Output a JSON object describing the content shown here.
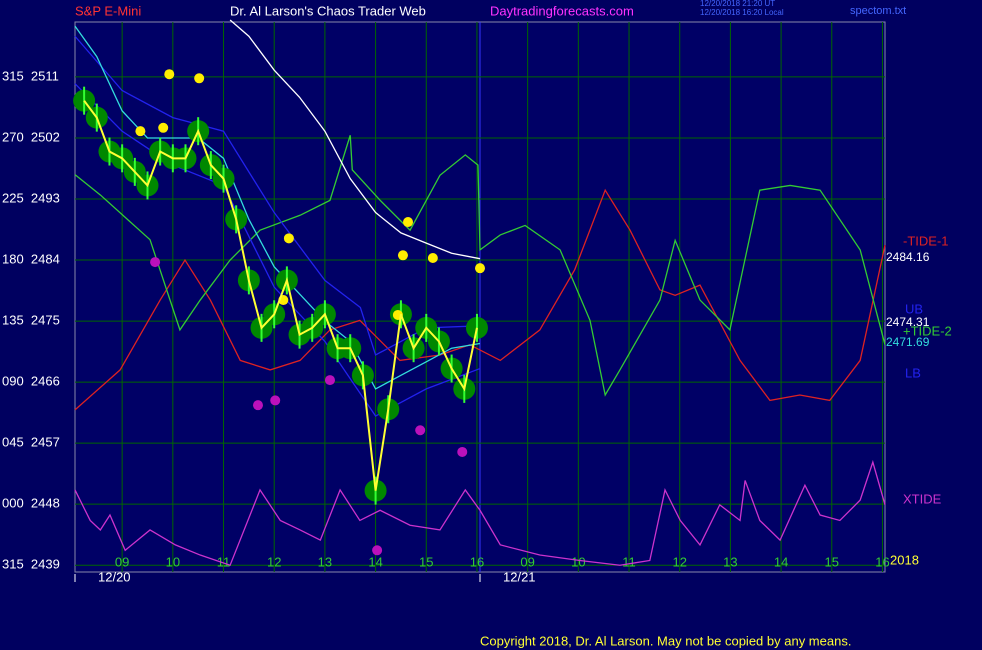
{
  "chart_data": {
    "type": "line",
    "subtitle": "S&P E-Mini",
    "title": "Dr. Al Larson's Chaos Trader Web",
    "website": "Daytradingforecasts.com",
    "timestamps": [
      "12/20/2018 21:20 UT",
      "12/20/2018 16:20 Local"
    ],
    "file": "spectom.txt",
    "copyright": "Copyright 2018, Dr. Al Larson. May not be copied by any means.",
    "year_label": "2018",
    "xlim": [
      -0.93,
      15.05
    ],
    "ylim": [
      2438,
      2519.1
    ],
    "grid": true,
    "xticks": [
      {
        "value": 0,
        "label": "09"
      },
      {
        "value": 1,
        "label": "10"
      },
      {
        "value": 2,
        "label": "11"
      },
      {
        "value": 3,
        "label": "12"
      },
      {
        "value": 4,
        "label": "13"
      },
      {
        "value": 5,
        "label": "14"
      },
      {
        "value": 6,
        "label": "15"
      },
      {
        "value": 7,
        "label": "16"
      },
      {
        "value": 8,
        "label": "09"
      },
      {
        "value": 9,
        "label": "10"
      },
      {
        "value": 10,
        "label": "11"
      },
      {
        "value": 11,
        "label": "12"
      },
      {
        "value": 12,
        "label": "13"
      },
      {
        "value": 13,
        "label": "14"
      },
      {
        "value": 14,
        "label": "15"
      },
      {
        "value": 15,
        "label": "16"
      }
    ],
    "date_ticks": [
      {
        "value": -0.93,
        "label": "12/20"
      },
      {
        "value": 7.06,
        "label": "12/21"
      }
    ],
    "yticks": [
      {
        "value": 2511,
        "label": "315  2511"
      },
      {
        "value": 2502,
        "label": "270  2502"
      },
      {
        "value": 2493,
        "label": "225  2493"
      },
      {
        "value": 2484,
        "label": "180  2484"
      },
      {
        "value": 2475,
        "label": "135  2475"
      },
      {
        "value": 2466,
        "label": "090  2466"
      },
      {
        "value": 2457,
        "label": "045  2457"
      },
      {
        "value": 2448,
        "label": "000  2448"
      },
      {
        "value": 2439,
        "label": "315  2439"
      }
    ],
    "series": [
      {
        "name": "XTIDE",
        "color": "#cc33cc",
        "x": [
          -0.93,
          -0.63,
          -0.43,
          -0.24,
          0.06,
          0.55,
          1.05,
          1.54,
          2.13,
          2.72,
          3.12,
          3.51,
          3.91,
          4.3,
          4.69,
          5.09,
          5.68,
          6.27,
          6.77,
          7.06,
          7.46,
          8.24,
          9.03,
          9.82,
          10.41,
          10.71,
          11.01,
          11.4,
          11.79,
          12.19,
          12.29,
          12.58,
          12.98,
          13.47,
          13.77,
          14.16,
          14.56,
          14.81,
          15.05
        ],
        "values": [
          2450.1,
          2445.6,
          2444.2,
          2446.4,
          2441.2,
          2444.2,
          2442.0,
          2440.5,
          2439.0,
          2450.1,
          2445.6,
          2444.2,
          2442.7,
          2450.1,
          2445.6,
          2447.1,
          2444.9,
          2444.2,
          2450.1,
          2447.1,
          2442.0,
          2440.5,
          2439.7,
          2439.0,
          2439.7,
          2450.1,
          2445.6,
          2442.0,
          2447.9,
          2445.6,
          2451.5,
          2445.6,
          2442.7,
          2450.8,
          2446.4,
          2445.6,
          2448.6,
          2454.2,
          2447.9
        ]
      },
      {
        "name": "-TIDE-1",
        "color": "#dd2222",
        "x": [
          -0.93,
          -0.04,
          0.75,
          1.24,
          1.74,
          2.33,
          2.92,
          3.51,
          4.1,
          4.69,
          5.48,
          6.27,
          6.86,
          7.46,
          8.24,
          8.93,
          9.53,
          10.02,
          10.61,
          10.91,
          11.4,
          12.19,
          12.78,
          13.37,
          13.96,
          14.56,
          15.05
        ],
        "values": [
          2461.9,
          2467.8,
          2478.1,
          2484.0,
          2478.1,
          2469.2,
          2467.8,
          2469.2,
          2473.7,
          2475.1,
          2469.2,
          2470.0,
          2471.5,
          2469.2,
          2473.7,
          2482.6,
          2494.3,
          2488.4,
          2479.6,
          2478.8,
          2480.3,
          2469.2,
          2463.3,
          2464.1,
          2463.3,
          2469.2,
          2486.2
        ]
      },
      {
        "name": "+TIDE-2",
        "color": "#33cc33",
        "x": [
          -0.93,
          -0.43,
          0.55,
          1.14,
          1.54,
          2.13,
          2.72,
          3.51,
          4.1,
          4.5,
          4.54,
          5.09,
          5.68,
          6.27,
          6.77,
          7.02,
          7.06,
          7.46,
          7.95,
          8.64,
          9.23,
          9.53,
          9.82,
          10.61,
          10.91,
          11.4,
          11.99,
          12.58,
          13.18,
          13.77,
          14.56,
          15.05
        ],
        "values": [
          2496.6,
          2493.6,
          2487.0,
          2473.7,
          2478.1,
          2484.0,
          2488.4,
          2490.6,
          2492.8,
          2502.4,
          2497.3,
          2492.8,
          2488.4,
          2496.5,
          2499.5,
          2498.0,
          2485.5,
          2487.7,
          2489.1,
          2485.5,
          2475.1,
          2464.1,
          2467.8,
          2478.1,
          2486.9,
          2478.1,
          2473.7,
          2494.3,
          2495.0,
          2494.3,
          2485.5,
          2471.5
        ]
      },
      {
        "name": "UB",
        "color": "#2222ee",
        "last_value": 2474.31,
        "x": [
          -0.93,
          0,
          1,
          2,
          3,
          4,
          4.7,
          5.0,
          5.5,
          6,
          7.06
        ],
        "values": [
          2517,
          2509,
          2505,
          2503,
          2491,
          2481,
          2477,
          2470,
          2472,
          2474,
          2474.3
        ]
      },
      {
        "name": "LB",
        "color": "#2222ee",
        "x": [
          -0.93,
          0,
          1,
          2,
          3,
          4,
          5,
          5.5,
          6,
          7.06
        ],
        "values": [
          2510,
          2503,
          2498,
          2495,
          2480,
          2472,
          2461,
          2463,
          2465,
          2468
        ]
      },
      {
        "color": "#ffffff",
        "last_value": 2484.16,
        "x": [
          2.13,
          2.5,
          3,
          3.5,
          4,
          4.5,
          5,
          5.5,
          6,
          6.5,
          7.06
        ],
        "values": [
          2519.4,
          2517,
          2512,
          2508,
          2503,
          2496,
          2491,
          2488,
          2486.5,
          2485,
          2484.2
        ]
      },
      {
        "color": "#33dddd",
        "last_value": 2471.69,
        "x": [
          -0.93,
          -0.5,
          0,
          0.5,
          1,
          1.5,
          2,
          2.5,
          3,
          3.5,
          4,
          4.5,
          5,
          5.5,
          6,
          6.5,
          7.06
        ],
        "values": [
          2518.5,
          2514,
          2506,
          2502,
          2502,
          2502,
          2499,
          2490,
          2483,
          2479,
          2475,
          2472,
          2465,
          2467,
          2469,
          2471,
          2471.7
        ]
      },
      {
        "color": "#ffff33",
        "marker_color": "#008800",
        "x": [
          -0.75,
          -0.5,
          -0.25,
          0,
          0.25,
          0.5,
          0.75,
          1.0,
          1.25,
          1.5,
          1.75,
          2.0,
          2.25,
          2.5,
          2.75,
          3.0,
          3.25,
          3.5,
          3.75,
          4.0,
          4.25,
          4.5,
          4.75,
          5.0,
          5.25,
          5.5,
          5.75,
          6.0,
          6.25,
          6.5,
          6.75,
          7.0
        ],
        "values": [
          2507.5,
          2505,
          2500,
          2499,
          2497,
          2495,
          2500,
          2499,
          2499,
          2503,
          2498,
          2496,
          2490,
          2481,
          2474,
          2476,
          2481,
          2473,
          2474,
          2476,
          2471,
          2471,
          2467,
          2450,
          2462,
          2476,
          2471,
          2474,
          2472,
          2468,
          2465,
          2474
        ]
      }
    ],
    "highs": {
      "color": "#ffee00",
      "x": [
        0.93,
        1.52,
        0.81,
        0.36,
        3.29,
        3.18,
        5.64,
        5.54,
        5.44,
        7.06,
        6.13
      ],
      "values": [
        2511.4,
        2510.8,
        2503.5,
        2503,
        2487.2,
        2478.1,
        2489.6,
        2484.7,
        2475.9,
        2482.8,
        2484.3
      ]
    },
    "lows": {
      "color": "#bb11bb",
      "x": [
        0.65,
        2.68,
        3.02,
        5.88,
        6.71,
        5.03,
        4.1
      ],
      "values": [
        2483.7,
        2462.6,
        2463.3,
        2458.9,
        2455.7,
        2441.2,
        2466.3
      ]
    }
  }
}
